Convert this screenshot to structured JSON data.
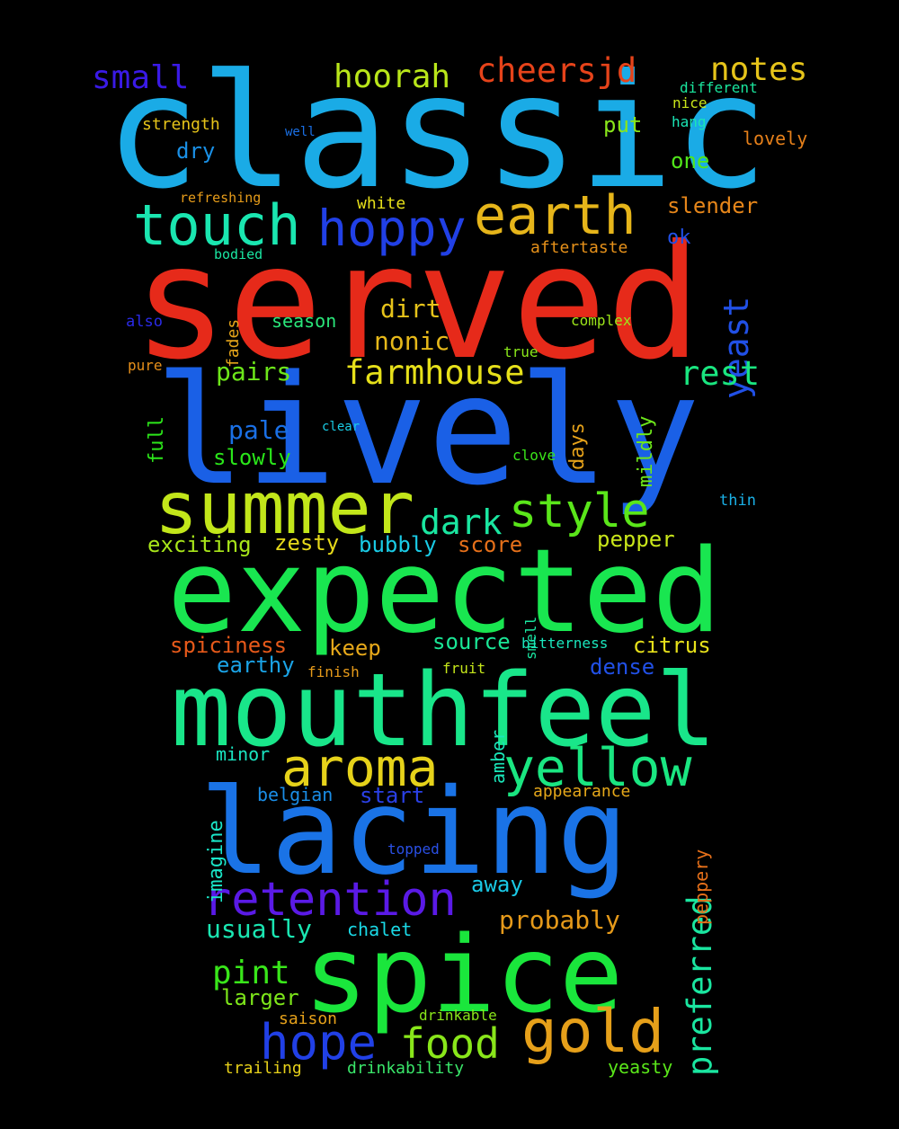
{
  "words": [
    {
      "text": "classic",
      "color": "#1aabe6"
    },
    {
      "text": "served",
      "color": "#e62a1a"
    },
    {
      "text": "lively",
      "color": "#1a60e6"
    },
    {
      "text": "expected",
      "color": "#19e650"
    },
    {
      "text": "mouthfeel",
      "color": "#19e68a"
    },
    {
      "text": "lacing",
      "color": "#1a73e6"
    },
    {
      "text": "spice",
      "color": "#1ae63c"
    },
    {
      "text": "summer",
      "color": "#c2e61a"
    },
    {
      "text": "touch",
      "color": "#1ae6b0"
    },
    {
      "text": "earth",
      "color": "#e6b51a"
    },
    {
      "text": "hoppy",
      "color": "#2140e6"
    },
    {
      "text": "aroma",
      "color": "#e6d21a"
    },
    {
      "text": "yellow",
      "color": "#1ae681"
    },
    {
      "text": "gold",
      "color": "#e6a01a"
    },
    {
      "text": "retention",
      "color": "#5a1ae6"
    },
    {
      "text": "hope",
      "color": "#2140e6"
    },
    {
      "text": "food",
      "color": "#89e61a"
    },
    {
      "text": "style",
      "color": "#5ae61a"
    },
    {
      "text": "dark",
      "color": "#1ae6a0"
    },
    {
      "text": "yeast",
      "color": "#2150e6"
    },
    {
      "text": "farmhouse",
      "color": "#e6e01a"
    },
    {
      "text": "rest",
      "color": "#1ae680"
    },
    {
      "text": "preferred",
      "color": "#1ae6a0"
    },
    {
      "text": "cheersjd",
      "color": "#e6431a"
    },
    {
      "text": "notes",
      "color": "#e6c41a"
    },
    {
      "text": "hoorah",
      "color": "#b9e61a"
    },
    {
      "text": "small",
      "color": "#3a1ae6"
    },
    {
      "text": "pint",
      "color": "#39e61a"
    },
    {
      "text": "probably",
      "color": "#e69a1a"
    },
    {
      "text": "usually",
      "color": "#1ae6b2"
    },
    {
      "text": "nonic",
      "color": "#e6b81a"
    },
    {
      "text": "dirt",
      "color": "#e6c31a"
    },
    {
      "text": "pairs",
      "color": "#6de61a"
    },
    {
      "text": "pale",
      "color": "#1a70e6"
    },
    {
      "text": "slowly",
      "color": "#2ae61a"
    },
    {
      "text": "exciting",
      "color": "#a8e61a"
    },
    {
      "text": "zesty",
      "color": "#e6d91a"
    },
    {
      "text": "bubbly",
      "color": "#1acbe6"
    },
    {
      "text": "score",
      "color": "#e6701a"
    },
    {
      "text": "pepper",
      "color": "#c9e61a"
    },
    {
      "text": "spiciness",
      "color": "#e6591a"
    },
    {
      "text": "keep",
      "color": "#e6a81a"
    },
    {
      "text": "source",
      "color": "#1ae696"
    },
    {
      "text": "citrus",
      "color": "#e6e01a"
    },
    {
      "text": "earthy",
      "color": "#1aa3e6"
    },
    {
      "text": "dense",
      "color": "#2150e6"
    },
    {
      "text": "minor",
      "color": "#1ae6c2"
    },
    {
      "text": "belgian",
      "color": "#1a8de6"
    },
    {
      "text": "start",
      "color": "#2a40e6"
    },
    {
      "text": "away",
      "color": "#1ac9e6"
    },
    {
      "text": "chalet",
      "color": "#1ad9e6"
    },
    {
      "text": "larger",
      "color": "#7de61a"
    },
    {
      "text": "amber",
      "color": "#1ae6b9"
    },
    {
      "text": "imagine",
      "color": "#1ae6c8"
    },
    {
      "text": "mildly",
      "color": "#6de61a"
    },
    {
      "text": "days",
      "color": "#e6a21a"
    },
    {
      "text": "full",
      "color": "#2ce61a"
    },
    {
      "text": "peppery",
      "color": "#e6701a"
    },
    {
      "text": "put",
      "color": "#89e61a"
    },
    {
      "text": "dry",
      "color": "#1a90e6"
    },
    {
      "text": "one",
      "color": "#51e61a"
    },
    {
      "text": "slender",
      "color": "#e6861a"
    },
    {
      "text": "ok",
      "color": "#2150e6"
    },
    {
      "text": "lovely",
      "color": "#e6801a"
    },
    {
      "text": "season",
      "color": "#2ae67a"
    },
    {
      "text": "strength",
      "color": "#e6c41a"
    },
    {
      "text": "different",
      "color": "#1ae69d"
    },
    {
      "text": "nice",
      "color": "#c9e61a"
    },
    {
      "text": "hang",
      "color": "#1ae6b6"
    },
    {
      "text": "white",
      "color": "#e6e01a"
    },
    {
      "text": "aftertaste",
      "color": "#e6911a"
    },
    {
      "text": "complex",
      "color": "#9de61a"
    },
    {
      "text": "true",
      "color": "#89e61a"
    },
    {
      "text": "fades",
      "color": "#e6a51a"
    },
    {
      "text": "appearance",
      "color": "#e6a81a"
    },
    {
      "text": "smell",
      "color": "#1ae6a0"
    },
    {
      "text": "bitterness",
      "color": "#1ae6bd"
    },
    {
      "text": "finish",
      "color": "#e69a1a"
    },
    {
      "text": "fruit",
      "color": "#c5e61a"
    },
    {
      "text": "clove",
      "color": "#3ae61a"
    },
    {
      "text": "topped",
      "color": "#2a50e6"
    },
    {
      "text": "saison",
      "color": "#e6a11a"
    },
    {
      "text": "drinkable",
      "color": "#89e61a"
    },
    {
      "text": "trailing",
      "color": "#e6d01a"
    },
    {
      "text": "drinkability",
      "color": "#3ae66a"
    },
    {
      "text": "yeasty",
      "color": "#5ae61a"
    },
    {
      "text": "refreshing",
      "color": "#e69c1a"
    },
    {
      "text": "bodied",
      "color": "#1ae6a2"
    },
    {
      "text": "well",
      "color": "#1a70e6"
    },
    {
      "text": "also",
      "color": "#2a2ae6"
    },
    {
      "text": "pure",
      "color": "#e68f1a"
    },
    {
      "text": "clear",
      "color": "#1acde6"
    },
    {
      "text": "thin",
      "color": "#1ab0e6"
    }
  ]
}
